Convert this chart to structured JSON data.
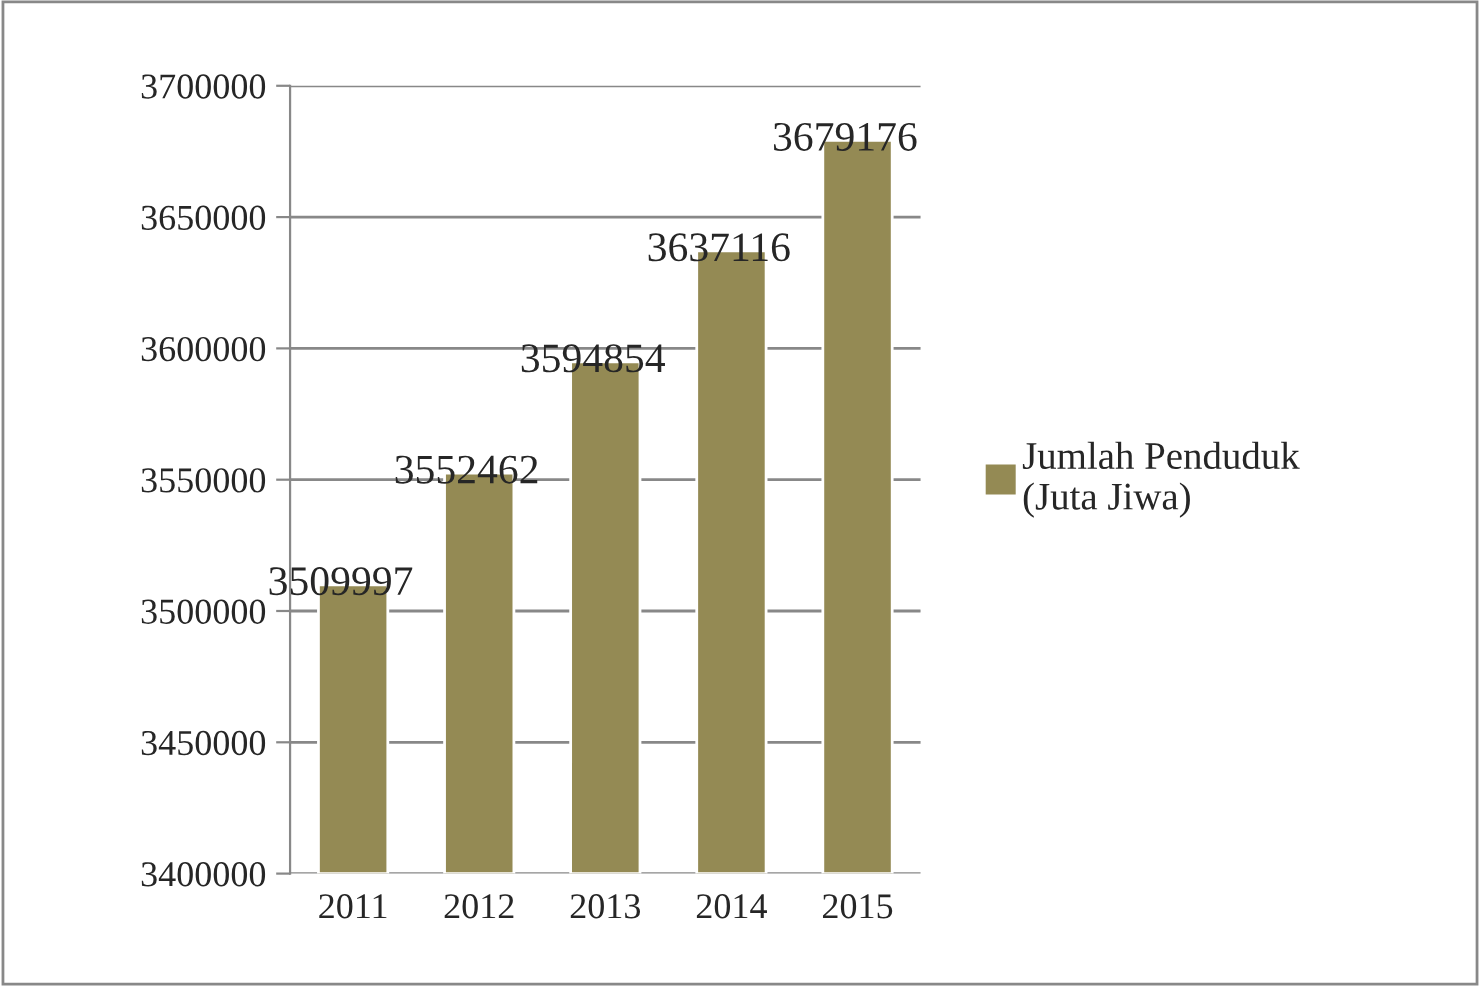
{
  "chart_data": {
    "type": "bar",
    "categories": [
      "2011",
      "2012",
      "2013",
      "2014",
      "2015"
    ],
    "series": [
      {
        "name": "Jumlah Penduduk\n(Juta Jiwa)",
        "color": "#948a54",
        "values": [
          3509997,
          3552462,
          3594854,
          3637116,
          3679176
        ]
      }
    ],
    "ylim": [
      3400000,
      3700000
    ],
    "yticks": [
      3400000,
      3450000,
      3500000,
      3550000,
      3600000,
      3650000,
      3700000
    ],
    "grid": "y",
    "legend": "right",
    "data_labels": true
  }
}
